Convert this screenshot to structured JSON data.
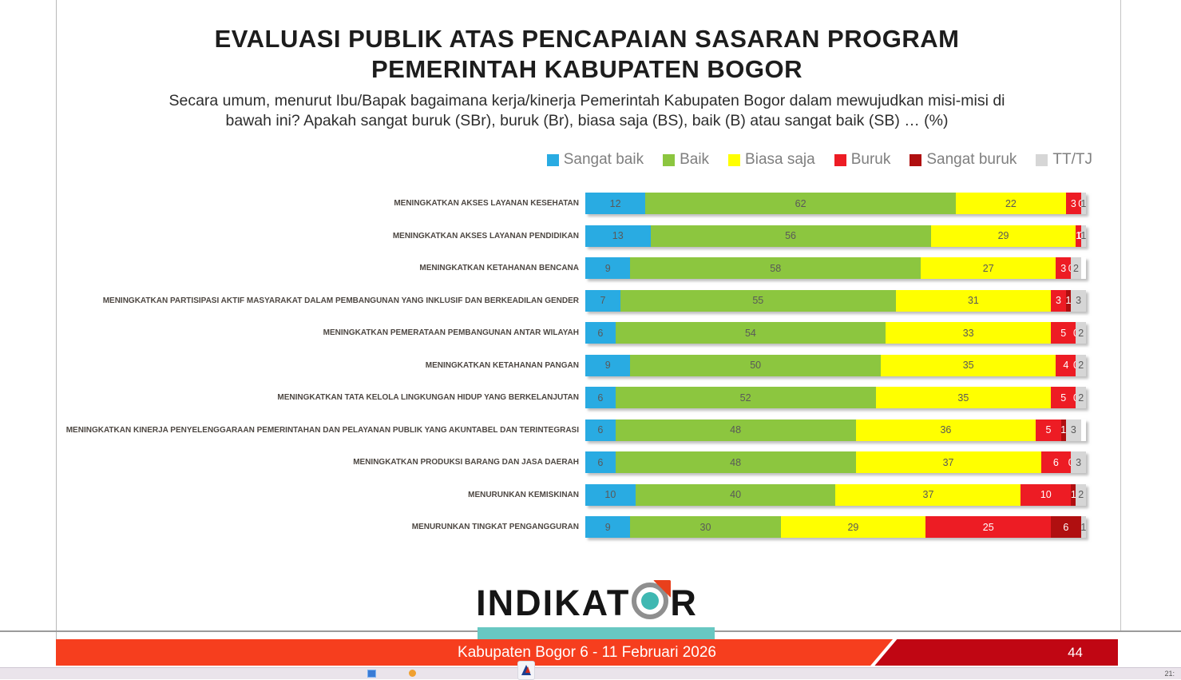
{
  "title": {
    "line1": "EVALUASI PUBLIK ATAS PENCAPAIAN SASARAN PROGRAM",
    "line2": "PEMERINTAH KABUPATEN BOGOR"
  },
  "subtitle": {
    "line1": "Secara umum, menurut Ibu/Bapak bagaimana kerja/kinerja Pemerintah Kabupaten Bogor dalam mewujudkan misi-misi di",
    "line2": "bawah ini? Apakah sangat buruk (SBr), buruk (Br), biasa saja (BS), baik (B) atau sangat baik (SB) … (%)"
  },
  "chart_data": {
    "type": "bar",
    "orientation": "horizontal-stacked",
    "unit": "%",
    "xlim": [
      0,
      100
    ],
    "legend_position": "top-right",
    "categories": [
      "MENINGKATKAN AKSES LAYANAN KESEHATAN",
      "MENINGKATKAN AKSES LAYANAN PENDIDIKAN",
      "MENINGKATKAN KETAHANAN BENCANA",
      "MENINGKATKAN PARTISIPASI AKTIF MASYARAKAT DALAM PEMBANGUNAN YANG INKLUSIF DAN BERKEADILAN GENDER",
      "MENINGKATKAN PEMERATAAN PEMBANGUNAN ANTAR WILAYAH",
      "MENINGKATKAN KETAHANAN PANGAN",
      "MENINGKATKAN TATA KELOLA LINGKUNGAN HIDUP YANG BERKELANJUTAN",
      "MENINGKATKAN KINERJA PENYELENGGARAAN PEMERINTAHAN DAN PELAYANAN PUBLIK YANG AKUNTABEL DAN TERINTEGRASI",
      "MENINGKATKAN PRODUKSI BARANG DAN JASA DAERAH",
      "MENURUNKAN KEMISKINAN",
      "MENURUNKAN TINGKAT PENGANGGURAN"
    ],
    "series": [
      {
        "name": "Sangat baik",
        "color": "#29ABE2",
        "label_color": "#595959",
        "values": [
          12,
          13,
          9,
          7,
          6,
          9,
          6,
          6,
          6,
          10,
          9
        ]
      },
      {
        "name": "Baik",
        "color": "#8CC63F",
        "label_color": "#595959",
        "values": [
          62,
          56,
          58,
          55,
          54,
          50,
          52,
          48,
          48,
          40,
          30
        ]
      },
      {
        "name": "Biasa saja",
        "color": "#FFFF00",
        "label_color": "#595959",
        "values": [
          22,
          29,
          27,
          31,
          33,
          35,
          35,
          36,
          37,
          37,
          29
        ]
      },
      {
        "name": "Buruk",
        "color": "#ED1C24",
        "label_color": "#FFFFFF",
        "values": [
          3,
          1,
          3,
          3,
          5,
          4,
          5,
          5,
          6,
          10,
          25
        ]
      },
      {
        "name": "Sangat buruk",
        "color": "#B00F10",
        "label_color": "#FFFFFF",
        "values": [
          0,
          0,
          0,
          1,
          0,
          0,
          0,
          1,
          0,
          1,
          6
        ]
      },
      {
        "name": "TT/TJ",
        "color": "#D6D6D6",
        "label_color": "#595959",
        "values": [
          1,
          1,
          2,
          3,
          2,
          2,
          2,
          3,
          3,
          2,
          1
        ]
      }
    ]
  },
  "logo": {
    "text_left": "INDIKAT",
    "text_right": "R"
  },
  "footer": {
    "caption": "Kabupaten Bogor 6 - 11 Februari 2026",
    "page": "44"
  },
  "taskbar": {
    "clock": "21:"
  },
  "colors": {
    "footer_red": "#F63E1E",
    "footer_dark_red": "#C00613",
    "teal_accent": "#68C8C2",
    "legend_text": "#7F7F7F"
  }
}
